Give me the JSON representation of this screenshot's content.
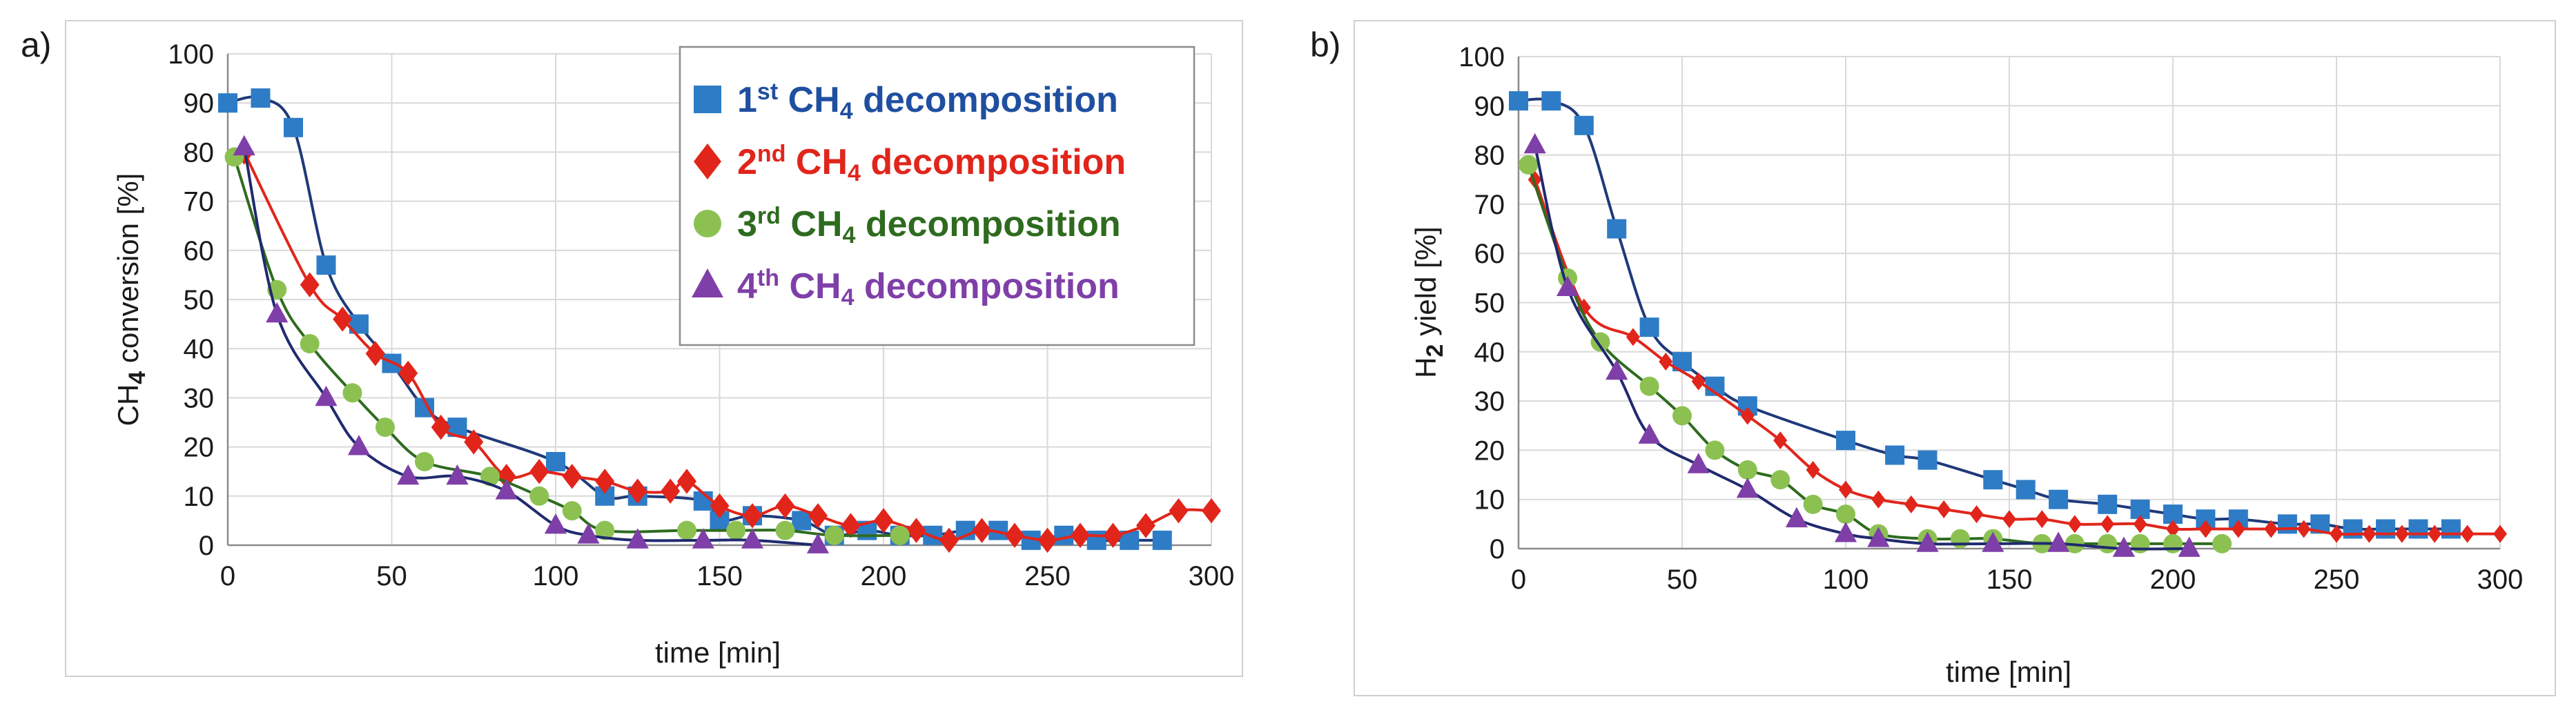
{
  "chart_data": [
    {
      "type": "scatter",
      "panel_tag": "a)",
      "xlabel": "time [min]",
      "ylabel_main": "CH",
      "ylabel_sub": "4",
      "ylabel_rest": "  conversion [%]",
      "xlim": [
        0,
        300
      ],
      "ylim": [
        0,
        100
      ],
      "xticks": [
        0,
        50,
        100,
        150,
        200,
        250,
        300
      ],
      "yticks": [
        0,
        10,
        20,
        30,
        40,
        50,
        60,
        70,
        80,
        90,
        100
      ],
      "grid": true,
      "legend": {
        "position": "top-right",
        "entries": [
          {
            "pre": "1",
            "sup": "st",
            "mid": " CH",
            "sub": "4",
            "post": " decomposition"
          },
          {
            "pre": "2",
            "sup": "nd",
            "mid": " CH",
            "sub": "4",
            "post": " decomposition"
          },
          {
            "pre": "3",
            "sup": "rd",
            "mid": " CH",
            "sub": "4",
            "post": " decomposition"
          },
          {
            "pre": "4",
            "sup": "th",
            "mid": "  CH",
            "sub": "4",
            "post": " decomposition"
          }
        ]
      },
      "series": [
        {
          "name": "1st CH4 decomposition",
          "color": "#2e7cc6",
          "line": "#1f3a7a",
          "marker": "square",
          "points": [
            [
              0,
              90
            ],
            [
              10,
              91
            ],
            [
              20,
              85
            ],
            [
              30,
              57
            ],
            [
              40,
              45
            ],
            [
              50,
              37
            ],
            [
              60,
              28
            ],
            [
              70,
              24
            ],
            [
              100,
              17
            ],
            [
              115,
              10
            ],
            [
              125,
              10
            ],
            [
              145,
              9
            ],
            [
              150,
              5
            ],
            [
              160,
              6
            ],
            [
              175,
              5
            ],
            [
              185,
              2
            ],
            [
              195,
              3
            ],
            [
              205,
              2
            ],
            [
              215,
              2
            ],
            [
              225,
              3
            ],
            [
              235,
              3
            ],
            [
              245,
              1
            ],
            [
              255,
              2
            ],
            [
              265,
              1
            ],
            [
              275,
              1
            ],
            [
              285,
              1
            ]
          ]
        },
        {
          "name": "2nd CH4 decomposition",
          "color": "#e1251b",
          "line": "#e1251b",
          "marker": "diamond",
          "points": [
            [
              5,
              80
            ],
            [
              25,
              53
            ],
            [
              35,
              46
            ],
            [
              45,
              39
            ],
            [
              55,
              35
            ],
            [
              65,
              24
            ],
            [
              75,
              21
            ],
            [
              85,
              14
            ],
            [
              95,
              15
            ],
            [
              105,
              14
            ],
            [
              115,
              13
            ],
            [
              125,
              11
            ],
            [
              135,
              11
            ],
            [
              140,
              13
            ],
            [
              150,
              8
            ],
            [
              160,
              6
            ],
            [
              170,
              8
            ],
            [
              180,
              6
            ],
            [
              190,
              4
            ],
            [
              200,
              5
            ],
            [
              210,
              3
            ],
            [
              220,
              1
            ],
            [
              230,
              3
            ],
            [
              240,
              2
            ],
            [
              250,
              1
            ],
            [
              260,
              2
            ],
            [
              270,
              2
            ],
            [
              280,
              4
            ],
            [
              290,
              7
            ],
            [
              300,
              7
            ]
          ]
        },
        {
          "name": "3rd CH4 decomposition",
          "color": "#8cc152",
          "line": "#2e6b1f",
          "marker": "circle",
          "points": [
            [
              2,
              79
            ],
            [
              15,
              52
            ],
            [
              25,
              41
            ],
            [
              38,
              31
            ],
            [
              48,
              24
            ],
            [
              60,
              17
            ],
            [
              80,
              14
            ],
            [
              95,
              10
            ],
            [
              105,
              7
            ],
            [
              115,
              3
            ],
            [
              140,
              3
            ],
            [
              155,
              3
            ],
            [
              170,
              3
            ],
            [
              185,
              2
            ],
            [
              205,
              2
            ]
          ]
        },
        {
          "name": "4th CH4 decomposition",
          "color": "#7f3fa8",
          "line": "#1f2a6e",
          "marker": "triangle",
          "points": [
            [
              5,
              81
            ],
            [
              15,
              47
            ],
            [
              30,
              30
            ],
            [
              40,
              20
            ],
            [
              55,
              14
            ],
            [
              70,
              14
            ],
            [
              85,
              11
            ],
            [
              100,
              4
            ],
            [
              110,
              2
            ],
            [
              125,
              1
            ],
            [
              145,
              1
            ],
            [
              160,
              1
            ],
            [
              180,
              0
            ]
          ]
        }
      ]
    },
    {
      "type": "scatter",
      "panel_tag": "b)",
      "xlabel": "time [min]",
      "ylabel_main": "H",
      "ylabel_sub": "2",
      "ylabel_rest": " yield [%]",
      "xlim": [
        0,
        300
      ],
      "ylim": [
        0,
        100
      ],
      "xticks": [
        0,
        50,
        100,
        150,
        200,
        250,
        300
      ],
      "yticks": [
        0,
        10,
        20,
        30,
        40,
        50,
        60,
        70,
        80,
        90,
        100
      ],
      "grid": true,
      "series": [
        {
          "name": "1st CH4 decomposition",
          "color": "#2e7cc6",
          "line": "#1f3a7a",
          "marker": "square",
          "points": [
            [
              0,
              91
            ],
            [
              10,
              91
            ],
            [
              20,
              86
            ],
            [
              30,
              65
            ],
            [
              40,
              45
            ],
            [
              50,
              38
            ],
            [
              60,
              33
            ],
            [
              70,
              29
            ],
            [
              100,
              22
            ],
            [
              115,
              19
            ],
            [
              125,
              18
            ],
            [
              145,
              14
            ],
            [
              155,
              12
            ],
            [
              165,
              10
            ],
            [
              180,
              9
            ],
            [
              190,
              8
            ],
            [
              200,
              7
            ],
            [
              210,
              6
            ],
            [
              220,
              6
            ],
            [
              235,
              5
            ],
            [
              245,
              5
            ],
            [
              255,
              4
            ],
            [
              265,
              4
            ],
            [
              275,
              4
            ],
            [
              285,
              4
            ]
          ]
        },
        {
          "name": "2nd CH4 decomposition",
          "color": "#e1251b",
          "line": "#e1251b",
          "marker": "diamond",
          "points": [
            [
              5,
              75
            ],
            [
              20,
              49
            ],
            [
              35,
              43
            ],
            [
              45,
              38
            ],
            [
              55,
              34
            ],
            [
              70,
              27
            ],
            [
              80,
              22
            ],
            [
              90,
              16
            ],
            [
              100,
              12
            ],
            [
              110,
              10
            ],
            [
              120,
              9
            ],
            [
              130,
              8
            ],
            [
              140,
              7
            ],
            [
              150,
              6
            ],
            [
              160,
              6
            ],
            [
              170,
              5
            ],
            [
              180,
              5
            ],
            [
              190,
              5
            ],
            [
              200,
              4
            ],
            [
              210,
              4
            ],
            [
              220,
              4
            ],
            [
              230,
              4
            ],
            [
              240,
              4
            ],
            [
              250,
              3
            ],
            [
              260,
              3
            ],
            [
              270,
              3
            ],
            [
              280,
              3
            ],
            [
              290,
              3
            ],
            [
              300,
              3
            ]
          ]
        },
        {
          "name": "3rd CH4 decomposition",
          "color": "#8cc152",
          "line": "#2e6b1f",
          "marker": "circle",
          "points": [
            [
              3,
              78
            ],
            [
              15,
              55
            ],
            [
              25,
              42
            ],
            [
              40,
              33
            ],
            [
              50,
              27
            ],
            [
              60,
              20
            ],
            [
              70,
              16
            ],
            [
              80,
              14
            ],
            [
              90,
              9
            ],
            [
              100,
              7
            ],
            [
              110,
              3
            ],
            [
              125,
              2
            ],
            [
              135,
              2
            ],
            [
              145,
              2
            ],
            [
              160,
              1
            ],
            [
              170,
              1
            ],
            [
              180,
              1
            ],
            [
              190,
              1
            ],
            [
              200,
              1
            ],
            [
              215,
              1
            ]
          ]
        },
        {
          "name": "4th CH4 decomposition",
          "color": "#7f3fa8",
          "line": "#1f2a6e",
          "marker": "triangle",
          "points": [
            [
              5,
              82
            ],
            [
              15,
              53
            ],
            [
              30,
              36
            ],
            [
              40,
              23
            ],
            [
              55,
              17
            ],
            [
              70,
              12
            ],
            [
              85,
              6
            ],
            [
              100,
              3
            ],
            [
              110,
              2
            ],
            [
              125,
              1
            ],
            [
              145,
              1
            ],
            [
              165,
              1
            ],
            [
              185,
              0
            ],
            [
              205,
              0
            ]
          ]
        }
      ]
    }
  ]
}
